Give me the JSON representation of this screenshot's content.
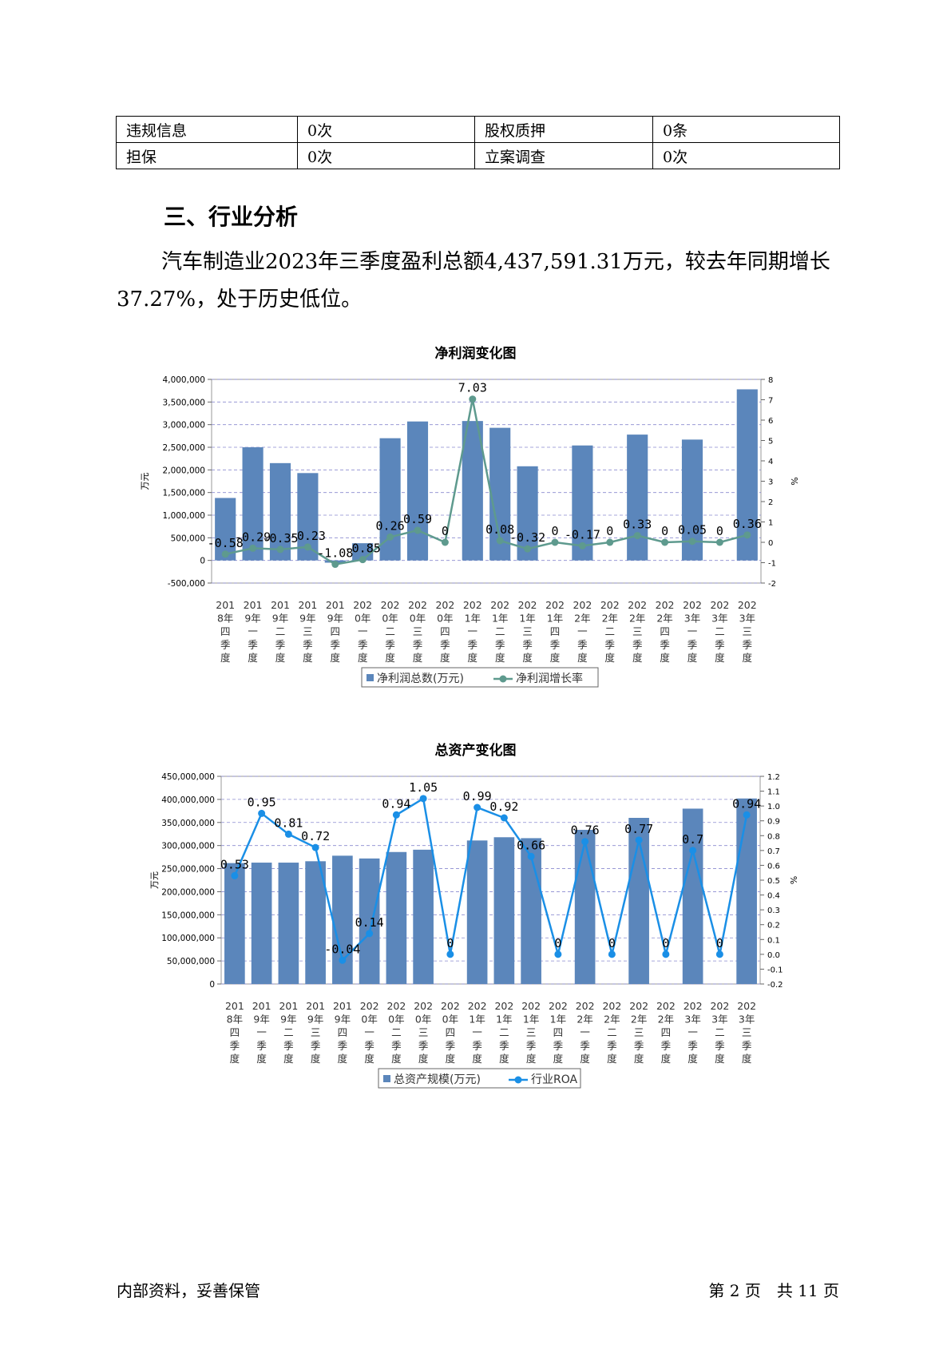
{
  "table": {
    "rows": [
      [
        "违规信息",
        "0次",
        "股权质押",
        "0条"
      ],
      [
        "担保",
        "0次",
        "立案调查",
        "0次"
      ]
    ]
  },
  "section_title": "三、行业分析",
  "paragraph": "汽车制造业2023年三季度盈利总额4,437,591.31万元，较去年同期增长37.27%，处于历史低位。",
  "footer": {
    "left": "内部资料，妥善保管",
    "right": "第 2 页　共 11 页"
  },
  "colors": {
    "bar": "#5b86bb",
    "line1": "#5e9a8e",
    "line2": "#1a8fe6",
    "grid": "#8a8acf"
  },
  "chart_data": [
    {
      "type": "bar",
      "title": "净利润变化图",
      "categories": [
        "2018年四季度",
        "2019年一季度",
        "2019年二季度",
        "2019年三季度",
        "2019年四季度",
        "2020年一季度",
        "2020年二季度",
        "2020年三季度",
        "2020年四季度",
        "2021年一季度",
        "2021年二季度",
        "2021年三季度",
        "2021年四季度",
        "2022年一季度",
        "2022年二季度",
        "2022年三季度",
        "2022年四季度",
        "2023年一季度",
        "2023年二季度",
        "2023年三季度"
      ],
      "series": [
        {
          "name": "净利润总数(万元)",
          "type": "bar",
          "axis": "left",
          "values": [
            1380000,
            2500000,
            2150000,
            1930000,
            -50000,
            380000,
            2700000,
            3070000,
            0,
            3080000,
            2930000,
            2080000,
            0,
            2540000,
            0,
            2780000,
            0,
            2670000,
            0,
            3780000
          ]
        },
        {
          "name": "净利润增长率",
          "type": "line",
          "axis": "right",
          "values": [
            -0.58,
            -0.29,
            -0.35,
            -0.23,
            -1.08,
            -0.85,
            0.26,
            0.59,
            0,
            7.03,
            0.08,
            -0.32,
            0,
            -0.17,
            0,
            0.33,
            0,
            0.05,
            0,
            0.36
          ],
          "labels": [
            "-0.58",
            "-0.29",
            "-0.35",
            "-0.23",
            "-1.08",
            "-0.85",
            "0.26",
            "0.59",
            "0",
            "7.03",
            "0.08",
            "-0.32",
            "0",
            "-0.17",
            "0",
            "0.33",
            "0",
            "0.05",
            "0",
            "0.36"
          ]
        }
      ],
      "ylabel": "万元",
      "ylabel_right": "%",
      "ylim": [
        -500000,
        4000000
      ],
      "ylim_right": [
        -2,
        8
      ],
      "y_ticks": [
        "-500,000",
        "0",
        "500,000",
        "1,000,000",
        "1,500,000",
        "2,000,000",
        "2,500,000",
        "3,000,000",
        "3,500,000",
        "4,000,000"
      ],
      "y_right_ticks": [
        "-2",
        "-1",
        "0",
        "1",
        "2",
        "3",
        "4",
        "5",
        "6",
        "7",
        "8"
      ],
      "grid": true,
      "legend": "bottom"
    },
    {
      "type": "bar",
      "title": "总资产变化图",
      "categories": [
        "2018年四季度",
        "2019年一季度",
        "2019年二季度",
        "2019年三季度",
        "2019年四季度",
        "2020年一季度",
        "2020年二季度",
        "2020年三季度",
        "2020年四季度",
        "2021年一季度",
        "2021年二季度",
        "2021年三季度",
        "2021年四季度",
        "2022年一季度",
        "2022年二季度",
        "2022年三季度",
        "2022年四季度",
        "2023年一季度",
        "2023年二季度",
        "2023年三季度"
      ],
      "series": [
        {
          "name": "总资产规模(万元)",
          "type": "bar",
          "axis": "left",
          "values": [
            262000000,
            263000000,
            263000000,
            266000000,
            278000000,
            272000000,
            286000000,
            291000000,
            0,
            311000000,
            318000000,
            316000000,
            0,
            334000000,
            0,
            360000000,
            0,
            380000000,
            0,
            402000000
          ]
        },
        {
          "name": "行业ROA",
          "type": "line",
          "axis": "right",
          "values": [
            0.53,
            0.95,
            0.81,
            0.72,
            -0.04,
            0.14,
            0.94,
            1.05,
            0,
            0.99,
            0.92,
            0.66,
            0,
            0.76,
            0,
            0.77,
            0,
            0.7,
            0,
            0.94
          ],
          "labels": [
            "0.53",
            "0.95",
            "0.81",
            "0.72",
            "-0.04",
            "0.14",
            "0.94",
            "1.05",
            "0",
            "0.99",
            "0.92",
            "0.66",
            "0",
            "0.76",
            "0",
            "0.77",
            "0",
            "0.7",
            "0",
            "0.94"
          ]
        }
      ],
      "ylabel": "万元",
      "ylabel_right": "%",
      "ylim": [
        0,
        450000000
      ],
      "ylim_right": [
        -0.2,
        1.2
      ],
      "y_ticks": [
        "0",
        "50,000,000",
        "100,000,000",
        "150,000,000",
        "200,000,000",
        "250,000,000",
        "300,000,000",
        "350,000,000",
        "400,000,000",
        "450,000,000"
      ],
      "y_right_ticks": [
        "-0.2",
        "-0.1",
        "0.0",
        "0.1",
        "0.2",
        "0.3",
        "0.4",
        "0.5",
        "0.6",
        "0.7",
        "0.8",
        "0.9",
        "1.0",
        "1.1",
        "1.2"
      ],
      "grid": true,
      "legend": "bottom"
    }
  ]
}
